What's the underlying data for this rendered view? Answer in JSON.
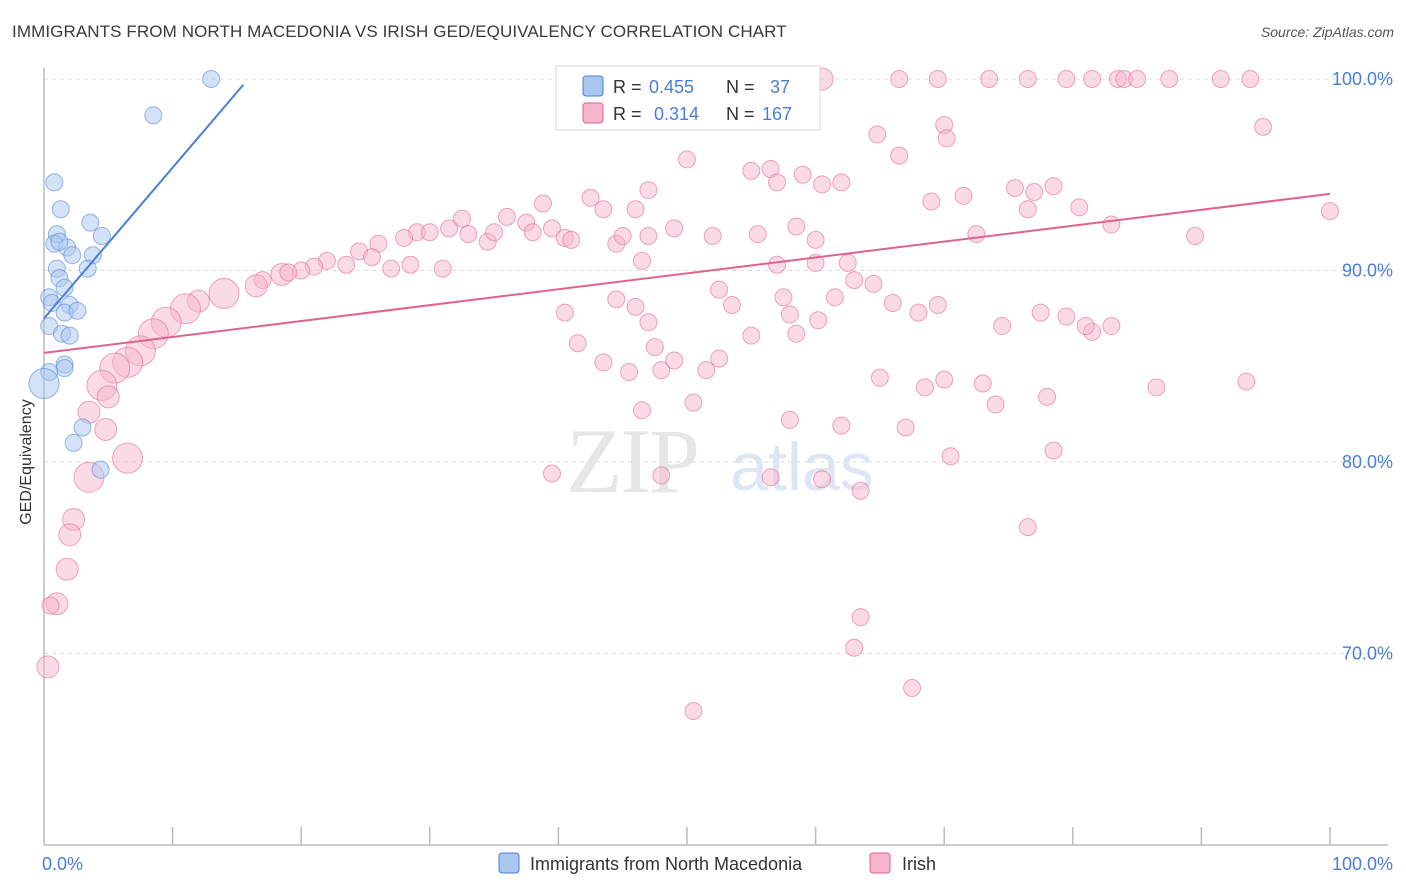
{
  "title": "IMMIGRANTS FROM NORTH MACEDONIA VS IRISH GED/EQUIVALENCY CORRELATION CHART",
  "source": "Source: ZipAtlas.com",
  "watermark": {
    "zip": "ZIP",
    "atlas": "atlas"
  },
  "legend_top": {
    "rows": [
      {
        "r_label": "R =",
        "r_value": "0.455",
        "n_label": "N =",
        "n_value": "37"
      },
      {
        "r_label": "R =",
        "r_value": "0.314",
        "n_label": "N =",
        "n_value": "167"
      }
    ]
  },
  "chart_data": {
    "type": "scatter",
    "title": "IMMIGRANTS FROM NORTH MACEDONIA VS IRISH GED/EQUIVALENCY CORRELATION CHART",
    "xlabel": "",
    "ylabel": "GED/Equivalency",
    "xlim": [
      0,
      100
    ],
    "ylim": [
      60,
      100
    ],
    "x_tick_labels": [
      "0.0%",
      "100.0%"
    ],
    "y_tick_labels": [
      "70.0%",
      "80.0%",
      "90.0%",
      "100.0%"
    ],
    "y_ticks": [
      70,
      80,
      90,
      100
    ],
    "grid": true,
    "colors": {
      "blue": "#4a7fd6",
      "blue_fill": "#a9c6ef",
      "pink": "#e0628f",
      "pink_fill": "#f5b6cb",
      "tick_text": "#4a7fd6"
    },
    "series": [
      {
        "name": "Immigrants from North Macedonia",
        "color": "#4a7fd6",
        "trend": {
          "x": [
            0,
            15.5
          ],
          "y": [
            87.5,
            99.7
          ]
        },
        "points": [
          [
            13,
            100,
            1
          ],
          [
            8.5,
            98.1,
            1
          ],
          [
            0.8,
            94.6,
            1
          ],
          [
            1.3,
            93.2,
            1
          ],
          [
            3.6,
            92.5,
            1
          ],
          [
            1,
            91.9,
            1
          ],
          [
            0.8,
            91.4,
            1
          ],
          [
            1.8,
            91.2,
            1
          ],
          [
            4.5,
            91.8,
            1
          ],
          [
            1.2,
            91.5,
            1
          ],
          [
            2.2,
            90.8,
            1
          ],
          [
            3.8,
            90.8,
            1
          ],
          [
            1,
            90.1,
            1
          ],
          [
            3.4,
            90.1,
            1
          ],
          [
            1.2,
            89.6,
            1
          ],
          [
            1.6,
            89.1,
            1
          ],
          [
            0.4,
            88.6,
            1
          ],
          [
            0.6,
            88.3,
            1
          ],
          [
            2,
            88.2,
            1
          ],
          [
            1.6,
            87.8,
            1
          ],
          [
            2.6,
            87.9,
            1
          ],
          [
            0.4,
            87.1,
            1
          ],
          [
            1.4,
            86.7,
            1
          ],
          [
            2,
            86.6,
            1
          ],
          [
            1.6,
            85.1,
            1
          ],
          [
            1.6,
            84.9,
            1
          ],
          [
            0.4,
            84.7,
            1
          ],
          [
            0,
            84.1,
            2
          ],
          [
            3,
            81.8,
            1
          ],
          [
            2.3,
            81.0,
            1
          ],
          [
            4.4,
            79.6,
            1
          ]
        ]
      },
      {
        "name": "Irish",
        "color": "#e0628f",
        "trend": {
          "x": [
            0,
            100
          ],
          "y": [
            85.7,
            94.0
          ]
        },
        "points": [
          [
            60.5,
            100,
            1.5
          ],
          [
            66.5,
            100,
            1
          ],
          [
            69.5,
            100,
            1
          ],
          [
            73.5,
            100,
            1
          ],
          [
            76.5,
            100,
            1
          ],
          [
            79.5,
            100,
            1
          ],
          [
            81.5,
            100,
            1
          ],
          [
            83.5,
            100,
            1
          ],
          [
            84,
            100,
            1
          ],
          [
            85,
            100,
            1
          ],
          [
            87.5,
            100,
            1
          ],
          [
            91.5,
            100,
            1
          ],
          [
            93.8,
            100,
            1
          ],
          [
            94.8,
            97.5,
            1
          ],
          [
            70,
            97.6,
            1
          ],
          [
            70.2,
            96.9,
            1
          ],
          [
            64.8,
            97.1,
            1
          ],
          [
            50,
            95.8,
            1
          ],
          [
            56.5,
            95.3,
            1
          ],
          [
            59,
            95.0,
            1
          ],
          [
            66.5,
            96.0,
            1
          ],
          [
            55,
            95.2,
            1
          ],
          [
            60.5,
            94.5,
            1
          ],
          [
            71.5,
            93.9,
            1
          ],
          [
            75.5,
            94.3,
            1
          ],
          [
            77,
            94.1,
            1
          ],
          [
            78.5,
            94.4,
            1
          ],
          [
            62,
            94.6,
            1
          ],
          [
            57,
            94.6,
            1
          ],
          [
            69,
            93.6,
            1
          ],
          [
            76.5,
            93.2,
            1
          ],
          [
            80.5,
            93.3,
            1
          ],
          [
            100,
            93.1,
            1
          ],
          [
            47,
            94.2,
            1
          ],
          [
            42.5,
            93.8,
            1
          ],
          [
            43.5,
            93.2,
            1
          ],
          [
            46,
            93.2,
            1
          ],
          [
            38.8,
            93.5,
            1
          ],
          [
            36,
            92.8,
            1
          ],
          [
            37.5,
            92.5,
            1
          ],
          [
            32.5,
            92.7,
            1
          ],
          [
            31.5,
            92.2,
            1
          ],
          [
            29,
            92.0,
            1
          ],
          [
            28,
            91.7,
            1
          ],
          [
            30,
            92.0,
            1
          ],
          [
            33,
            91.9,
            1
          ],
          [
            34.5,
            91.5,
            1
          ],
          [
            35,
            92.0,
            1
          ],
          [
            38,
            92.0,
            1
          ],
          [
            39.5,
            92.2,
            1
          ],
          [
            40.5,
            91.7,
            1
          ],
          [
            41,
            91.6,
            1
          ],
          [
            44.5,
            91.4,
            1
          ],
          [
            45,
            91.8,
            1
          ],
          [
            47,
            91.8,
            1
          ],
          [
            49,
            92.2,
            1
          ],
          [
            52,
            91.8,
            1
          ],
          [
            55.5,
            91.9,
            1
          ],
          [
            60,
            91.6,
            1
          ],
          [
            58.5,
            92.3,
            1
          ],
          [
            72.5,
            91.9,
            1
          ],
          [
            83,
            92.4,
            1
          ],
          [
            89.5,
            91.8,
            1
          ],
          [
            26,
            91.4,
            1
          ],
          [
            24.5,
            91.0,
            1
          ],
          [
            25.5,
            90.7,
            1
          ],
          [
            22,
            90.5,
            1
          ],
          [
            23.5,
            90.3,
            1
          ],
          [
            27,
            90.1,
            1
          ],
          [
            28.5,
            90.3,
            1
          ],
          [
            21,
            90.2,
            1
          ],
          [
            20,
            90.0,
            1
          ],
          [
            18.5,
            89.8,
            1.5
          ],
          [
            17,
            89.5,
            1
          ],
          [
            19,
            89.9,
            1
          ],
          [
            16.5,
            89.2,
            1.5
          ],
          [
            14,
            88.8,
            2
          ],
          [
            12,
            88.4,
            1.5
          ],
          [
            11,
            88.0,
            2
          ],
          [
            9.5,
            87.3,
            2
          ],
          [
            8.5,
            86.7,
            2
          ],
          [
            7.5,
            85.8,
            2
          ],
          [
            6.5,
            85.2,
            2
          ],
          [
            5.5,
            84.9,
            2
          ],
          [
            4.5,
            84.0,
            2
          ],
          [
            5,
            83.4,
            1.5
          ],
          [
            3.5,
            82.6,
            1.5
          ],
          [
            4.8,
            81.7,
            1.5
          ],
          [
            6.5,
            80.2,
            2
          ],
          [
            3.5,
            79.2,
            2
          ],
          [
            2.3,
            77.0,
            1.5
          ],
          [
            2,
            76.2,
            1.5
          ],
          [
            1.8,
            74.4,
            1.5
          ],
          [
            1,
            72.6,
            1.5
          ],
          [
            0.5,
            72.5,
            1
          ],
          [
            0.3,
            69.3,
            1.5
          ],
          [
            31,
            90.1,
            1
          ],
          [
            46.5,
            90.5,
            1
          ],
          [
            52.5,
            89.0,
            1
          ],
          [
            53.5,
            88.2,
            1
          ],
          [
            57.5,
            88.6,
            1
          ],
          [
            58,
            87.7,
            1
          ],
          [
            63,
            89.5,
            1
          ],
          [
            64.5,
            89.3,
            1
          ],
          [
            66,
            88.3,
            1
          ],
          [
            68,
            87.8,
            1
          ],
          [
            69.5,
            88.2,
            1
          ],
          [
            74.5,
            87.1,
            1
          ],
          [
            77.5,
            87.8,
            1
          ],
          [
            79.5,
            87.6,
            1
          ],
          [
            81.5,
            86.8,
            1
          ],
          [
            60,
            90.4,
            1
          ],
          [
            62.5,
            90.4,
            1
          ],
          [
            57,
            90.3,
            1
          ],
          [
            58.5,
            86.7,
            1
          ],
          [
            55,
            86.6,
            1
          ],
          [
            52.5,
            85.4,
            1
          ],
          [
            51.5,
            84.8,
            1
          ],
          [
            48,
            84.8,
            1
          ],
          [
            50.5,
            83.1,
            1
          ],
          [
            61.5,
            88.6,
            1
          ],
          [
            60.2,
            87.4,
            1
          ],
          [
            65,
            84.4,
            1
          ],
          [
            68.5,
            83.9,
            1
          ],
          [
            70,
            84.3,
            1
          ],
          [
            73,
            84.1,
            1
          ],
          [
            74,
            83.0,
            1
          ],
          [
            78,
            83.4,
            1
          ],
          [
            86.5,
            83.9,
            1
          ],
          [
            93.5,
            84.2,
            1
          ],
          [
            81,
            87.1,
            1
          ],
          [
            83,
            87.1,
            1
          ],
          [
            44.5,
            88.5,
            1
          ],
          [
            46,
            88.1,
            1
          ],
          [
            47,
            87.3,
            1
          ],
          [
            49,
            85.3,
            1
          ],
          [
            47.5,
            86.0,
            1
          ],
          [
            45.5,
            84.7,
            1
          ],
          [
            40.5,
            87.8,
            1
          ],
          [
            41.5,
            86.2,
            1
          ],
          [
            43.5,
            85.2,
            1
          ],
          [
            46.5,
            82.7,
            1
          ],
          [
            58,
            82.2,
            1
          ],
          [
            62,
            81.9,
            1
          ],
          [
            67,
            81.8,
            1
          ],
          [
            70.5,
            80.3,
            1
          ],
          [
            78.5,
            80.6,
            1
          ],
          [
            76.5,
            76.6,
            1
          ],
          [
            56.5,
            79.2,
            1
          ],
          [
            60.5,
            79.1,
            1
          ],
          [
            63.5,
            78.5,
            1
          ],
          [
            48,
            79.3,
            1
          ],
          [
            63.5,
            71.9,
            1
          ],
          [
            63,
            70.3,
            1
          ],
          [
            67.5,
            68.2,
            1
          ],
          [
            50.5,
            67.0,
            1
          ],
          [
            39.5,
            79.4,
            1
          ]
        ]
      }
    ]
  },
  "legend_bottom": {
    "items": [
      {
        "label": "Immigrants from North Macedonia"
      },
      {
        "label": "Irish"
      }
    ]
  }
}
